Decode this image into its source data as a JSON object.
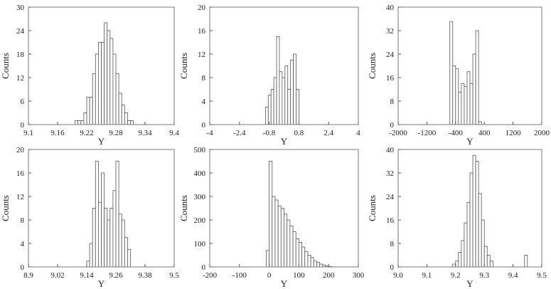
{
  "chart_data": [
    {
      "type": "bar",
      "title": "",
      "xlabel": "Y",
      "ylabel": "Counts",
      "xlim": [
        9.1,
        9.4
      ],
      "ylim": [
        0,
        30
      ],
      "xticks": [
        "9.1",
        "9.16",
        "9.22",
        "9.28",
        "9.34",
        "9.4"
      ],
      "yticks": [
        "0",
        "6",
        "12",
        "18",
        "24",
        "30"
      ],
      "grid": false,
      "bin_width": 0.006,
      "bins_start": [
        9.196,
        9.202,
        9.208,
        9.214,
        9.22,
        9.226,
        9.232,
        9.238,
        9.244,
        9.25,
        9.256,
        9.262,
        9.268,
        9.274,
        9.28,
        9.286,
        9.292,
        9.298,
        9.304,
        9.31,
        9.316
      ],
      "values": [
        1,
        1,
        1,
        3,
        7,
        7,
        13,
        18,
        21,
        21,
        26,
        24,
        22,
        18,
        13,
        8,
        5,
        3,
        1,
        1,
        0
      ]
    },
    {
      "type": "bar",
      "title": "",
      "xlabel": "Y",
      "ylabel": "Counts",
      "xlim": [
        -4,
        4
      ],
      "ylim": [
        0,
        20
      ],
      "xticks": [
        "-4",
        "-2.4",
        "-0.8",
        "0.8",
        "2.4",
        "4"
      ],
      "yticks": [
        "0",
        "4",
        "8",
        "12",
        "16",
        "20"
      ],
      "grid": false,
      "bin_width": 0.15,
      "bins_start": [
        -1.0,
        -0.85,
        -0.7,
        -0.55,
        -0.4,
        -0.25,
        -0.1,
        0.05,
        0.2,
        0.35,
        0.5,
        0.65,
        0.8
      ],
      "values": [
        3,
        5,
        6,
        8,
        15,
        9,
        8,
        10,
        6,
        11,
        12,
        6,
        0
      ]
    },
    {
      "type": "bar",
      "title": "",
      "xlabel": "Y",
      "ylabel": "Counts",
      "xlim": [
        -2000,
        2000
      ],
      "ylim": [
        0,
        40
      ],
      "xticks": [
        "-2000",
        "-1200",
        "-400",
        "400",
        "1200",
        "2000"
      ],
      "yticks": [
        "0",
        "8",
        "16",
        "24",
        "32",
        "40"
      ],
      "grid": false,
      "bin_width": 80,
      "bins_start": [
        -560,
        -480,
        -400,
        -320,
        -240,
        -160,
        -80,
        0,
        80,
        160,
        240
      ],
      "values": [
        35,
        20,
        19,
        11,
        14,
        13,
        18,
        14,
        24,
        32,
        1
      ]
    },
    {
      "type": "bar",
      "title": "",
      "xlabel": "Y",
      "ylabel": "Counts",
      "xlim": [
        8.9,
        9.5
      ],
      "ylim": [
        0,
        20
      ],
      "xticks": [
        "8.9",
        "9.02",
        "9.14",
        "9.26",
        "9.38",
        "9.5"
      ],
      "yticks": [
        "0",
        "4",
        "8",
        "12",
        "16",
        "20"
      ],
      "grid": false,
      "bin_width": 0.012,
      "bins_start": [
        9.14,
        9.152,
        9.164,
        9.176,
        9.188,
        9.2,
        9.212,
        9.224,
        9.236,
        9.248,
        9.26,
        9.272,
        9.284,
        9.296,
        9.308
      ],
      "values": [
        1,
        4,
        10,
        18,
        11,
        16,
        10,
        8,
        10,
        13,
        18,
        9,
        8,
        5,
        3
      ]
    },
    {
      "type": "bar",
      "title": "",
      "xlabel": "Y",
      "ylabel": "Counts",
      "xlim": [
        -200,
        300
      ],
      "ylim": [
        0,
        500
      ],
      "xticks": [
        "-200",
        "-100",
        "0",
        "100",
        "200",
        "300"
      ],
      "yticks": [
        "0",
        "100",
        "200",
        "300",
        "400",
        "500"
      ],
      "grid": false,
      "bin_width": 10,
      "bins_start": [
        -10,
        0,
        10,
        20,
        30,
        40,
        50,
        60,
        70,
        80,
        90,
        100,
        110,
        120,
        130,
        140,
        150,
        160,
        170,
        180,
        190,
        200
      ],
      "values": [
        70,
        450,
        300,
        285,
        260,
        250,
        225,
        200,
        175,
        150,
        120,
        105,
        85,
        65,
        50,
        40,
        25,
        20,
        12,
        8,
        4,
        2
      ]
    },
    {
      "type": "bar",
      "title": "",
      "xlabel": "Y",
      "ylabel": "Counts",
      "xlim": [
        9.0,
        9.5
      ],
      "ylim": [
        0,
        40
      ],
      "xticks": [
        "9.0",
        "9.1",
        "9.2",
        "9.3",
        "9.4",
        "9.5"
      ],
      "yticks": [
        "0",
        "8",
        "16",
        "24",
        "32",
        "40"
      ],
      "grid": false,
      "bin_width": 0.01,
      "bins_start": [
        9.19,
        9.2,
        9.21,
        9.22,
        9.23,
        9.24,
        9.25,
        9.26,
        9.27,
        9.28,
        9.29,
        9.3,
        9.31,
        9.32,
        9.44
      ],
      "values": [
        1,
        2,
        5,
        9,
        15,
        22,
        32,
        38,
        36,
        25,
        16,
        7,
        4,
        2,
        4
      ]
    }
  ]
}
